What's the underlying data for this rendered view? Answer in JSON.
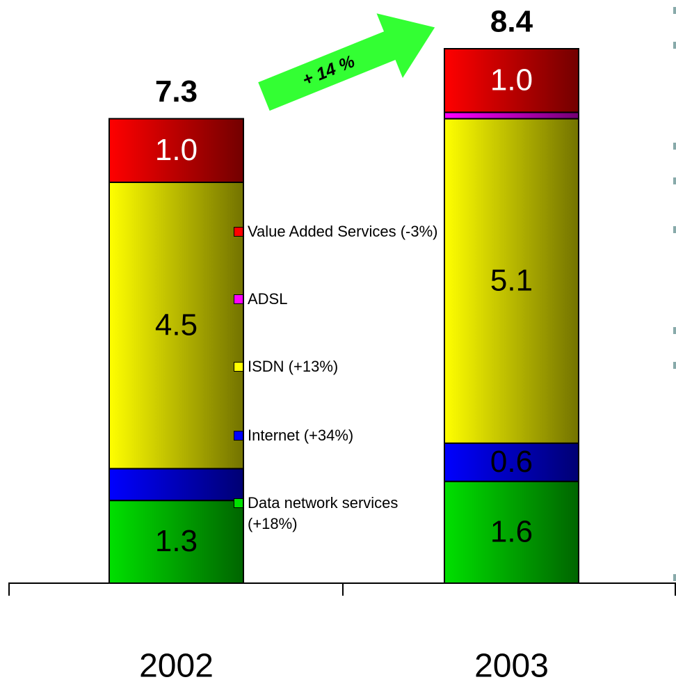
{
  "chart_data": {
    "type": "stacked_bar",
    "categories": [
      "2002",
      "2003"
    ],
    "series": [
      {
        "name": "Data network services (+18%)",
        "color": "#00e000",
        "values": [
          1.3,
          1.6
        ],
        "value_labels": [
          "1.3",
          "1.6"
        ]
      },
      {
        "name": "Internet (+34%)",
        "color": "#0000ff",
        "values": [
          0.5,
          0.6
        ],
        "value_labels": [
          null,
          "0.6"
        ]
      },
      {
        "name": "ISDN (+13%)",
        "color": "#ffff00",
        "values": [
          4.5,
          5.1
        ],
        "value_labels": [
          "4.5",
          "5.1"
        ]
      },
      {
        "name": "ADSL",
        "color": "#ff00ff",
        "values": [
          0,
          0.1
        ],
        "value_labels": [
          null,
          null
        ]
      },
      {
        "name": "Value Added Services (-3%)",
        "color": "#ff0000",
        "values": [
          1.0,
          1.0
        ],
        "value_labels": [
          "1.0",
          "1.0"
        ]
      }
    ],
    "totals": [
      7.3,
      8.4
    ],
    "annotation": "+ 14 %"
  }
}
